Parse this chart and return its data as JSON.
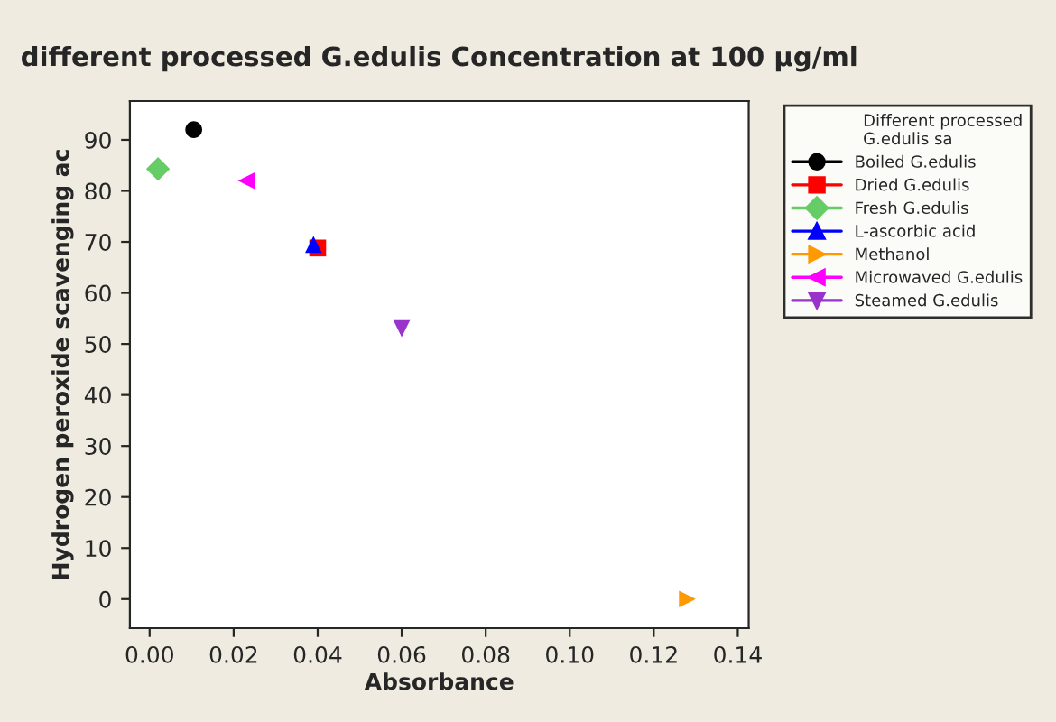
{
  "chart_data": {
    "type": "scatter",
    "title": "different processed G.edulis Concentration at 100 µg/ml",
    "xlabel": "Absorbance",
    "ylabel": "Hydrogen peroxide scavenging ac",
    "legend_title": "Different processed\nG.edulis sa",
    "legend": "right",
    "xlim": [
      -0.0047,
      0.1426
    ],
    "xticks": [
      {
        "value": 0,
        "label": "0.00"
      },
      {
        "value": 0.02,
        "label": "0.02"
      },
      {
        "value": 0.04,
        "label": "0.04"
      },
      {
        "value": 0.06,
        "label": "0.06"
      },
      {
        "value": 0.08,
        "label": "0.08"
      },
      {
        "value": 0.1,
        "label": "0.10"
      },
      {
        "value": 0.12,
        "label": "0.12"
      },
      {
        "value": 0.14,
        "label": "0.14"
      }
    ],
    "ylim": [
      -5.7,
      97.6
    ],
    "yticks": [
      0,
      10,
      20,
      30,
      40,
      50,
      60,
      70,
      80,
      90
    ],
    "grid": false,
    "series": [
      {
        "name": "Boiled G.edulis",
        "color": "#000000",
        "marker": "circle",
        "x": [
          0.0105
        ],
        "values": [
          92
        ]
      },
      {
        "name": "Dried G.edulis",
        "color": "#ff0000",
        "marker": "square",
        "x": [
          0.04
        ],
        "values": [
          68.8
        ]
      },
      {
        "name": "Fresh G.edulis",
        "color": "#66cc66",
        "marker": "diamond",
        "x": [
          0.002
        ],
        "values": [
          84.3
        ]
      },
      {
        "name": "L-ascorbic acid",
        "color": "#0000ff",
        "marker": "triangle",
        "x": [
          0.039
        ],
        "values": [
          69.5
        ]
      },
      {
        "name": "Methanol",
        "color": "#ff9900",
        "marker": "triangle-right",
        "x": [
          0.128
        ],
        "values": [
          0
        ]
      },
      {
        "name": "Microwaved G.edulis",
        "color": "#ff00ff",
        "marker": "triangle-left",
        "x": [
          0.023
        ],
        "values": [
          82
        ]
      },
      {
        "name": "Steamed G.edulis",
        "color": "#9933cc",
        "marker": "triangle-down",
        "x": [
          0.06
        ],
        "values": [
          53
        ]
      }
    ]
  }
}
